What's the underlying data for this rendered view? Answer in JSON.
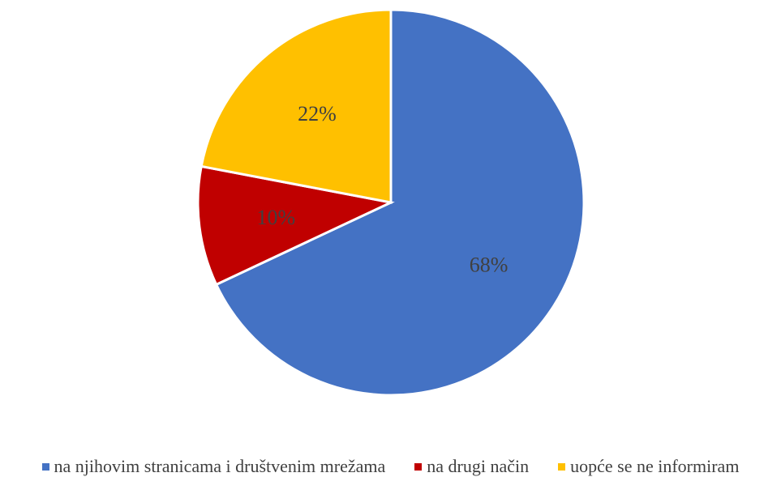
{
  "chart_data": {
    "type": "pie",
    "title": "",
    "categories": [
      "na njihovim stranicama i društvenim mrežama",
      "na drugi način",
      "uopće se ne informiram"
    ],
    "values": [
      68,
      10,
      22
    ],
    "labels": [
      "68%",
      "10%",
      "22%"
    ],
    "colors": [
      "#4472C4",
      "#C00000",
      "#FFC000"
    ],
    "start_angle_deg": 0,
    "direction": "clockwise",
    "legend_position": "bottom"
  }
}
